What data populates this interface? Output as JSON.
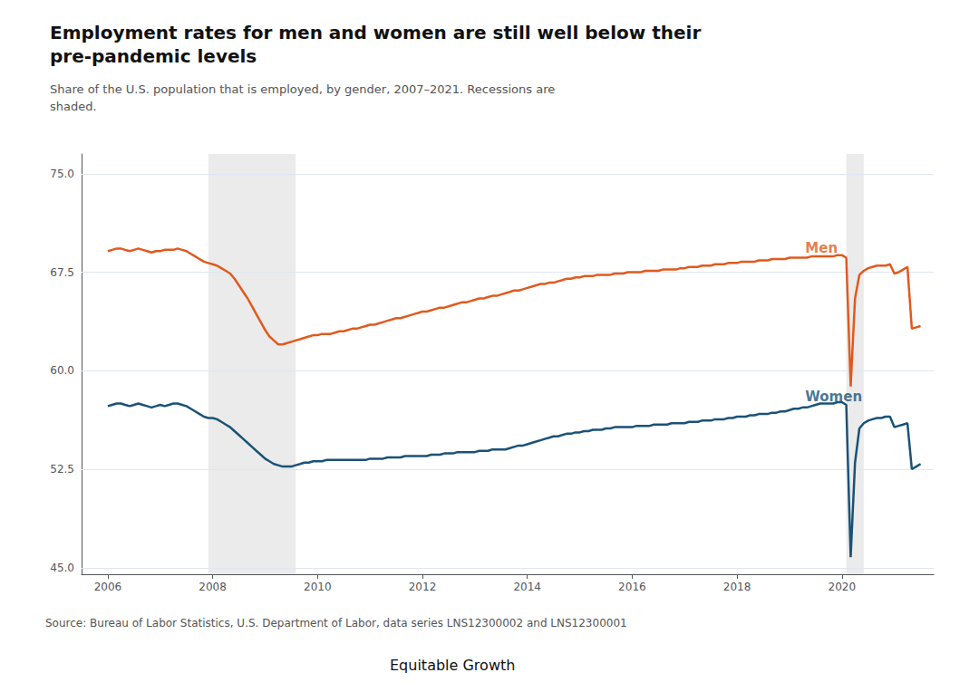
{
  "chart_data": {
    "type": "line",
    "title": "Employment rates for men and women are still well below their\npre-pandemic levels",
    "subtitle": "Share of the U.S. population that is employed, by gender, 2007–2021. Recessions are\nshaded.",
    "source": "Source: Bureau of Labor Statistics, U.S. Department of Labor, data series LNS12300002 and LNS12300001",
    "logo": "Equitable Growth",
    "xlim": [
      2005.5,
      2021.75
    ],
    "xticks": [
      2006,
      2008,
      2010,
      2012,
      2014,
      2016,
      2018,
      2020
    ],
    "ylim": [
      44.5,
      76.5
    ],
    "yticks": [
      {
        "value": 45,
        "label": "45.0"
      },
      52.5,
      {
        "value": 60,
        "label": "60.0"
      },
      67.5,
      {
        "value": 75,
        "label": "75.0"
      }
    ],
    "grid": true,
    "recessions": [
      [
        2007.917,
        2009.583
      ],
      [
        2020.083,
        2020.417
      ]
    ],
    "annotations": [
      {
        "text": "Men",
        "x": 2019.3,
        "y": 68.8,
        "color": "#e05a1e"
      },
      {
        "text": "Women",
        "x": 2019.3,
        "y": 57.5,
        "color": "#1a5276"
      }
    ],
    "x": [
      2006.0,
      2006.083,
      2006.167,
      2006.25,
      2006.333,
      2006.417,
      2006.5,
      2006.583,
      2006.667,
      2006.75,
      2006.833,
      2006.917,
      2007.0,
      2007.083,
      2007.167,
      2007.25,
      2007.333,
      2007.417,
      2007.5,
      2007.583,
      2007.667,
      2007.75,
      2007.833,
      2007.917,
      2008.0,
      2008.083,
      2008.167,
      2008.25,
      2008.333,
      2008.417,
      2008.5,
      2008.583,
      2008.667,
      2008.75,
      2008.833,
      2008.917,
      2009.0,
      2009.083,
      2009.167,
      2009.25,
      2009.333,
      2009.417,
      2009.5,
      2009.583,
      2009.667,
      2009.75,
      2009.833,
      2009.917,
      2010.0,
      2010.083,
      2010.167,
      2010.25,
      2010.333,
      2010.417,
      2010.5,
      2010.583,
      2010.667,
      2010.75,
      2010.833,
      2010.917,
      2011.0,
      2011.083,
      2011.167,
      2011.25,
      2011.333,
      2011.417,
      2011.5,
      2011.583,
      2011.667,
      2011.75,
      2011.833,
      2011.917,
      2012.0,
      2012.083,
      2012.167,
      2012.25,
      2012.333,
      2012.417,
      2012.5,
      2012.583,
      2012.667,
      2012.75,
      2012.833,
      2012.917,
      2013.0,
      2013.083,
      2013.167,
      2013.25,
      2013.333,
      2013.417,
      2013.5,
      2013.583,
      2013.667,
      2013.75,
      2013.833,
      2013.917,
      2014.0,
      2014.083,
      2014.167,
      2014.25,
      2014.333,
      2014.417,
      2014.5,
      2014.583,
      2014.667,
      2014.75,
      2014.833,
      2014.917,
      2015.0,
      2015.083,
      2015.167,
      2015.25,
      2015.333,
      2015.417,
      2015.5,
      2015.583,
      2015.667,
      2015.75,
      2015.833,
      2015.917,
      2016.0,
      2016.083,
      2016.167,
      2016.25,
      2016.333,
      2016.417,
      2016.5,
      2016.583,
      2016.667,
      2016.75,
      2016.833,
      2016.917,
      2017.0,
      2017.083,
      2017.167,
      2017.25,
      2017.333,
      2017.417,
      2017.5,
      2017.583,
      2017.667,
      2017.75,
      2017.833,
      2017.917,
      2018.0,
      2018.083,
      2018.167,
      2018.25,
      2018.333,
      2018.417,
      2018.5,
      2018.583,
      2018.667,
      2018.75,
      2018.833,
      2018.917,
      2019.0,
      2019.083,
      2019.167,
      2019.25,
      2019.333,
      2019.417,
      2019.5,
      2019.583,
      2019.667,
      2019.75,
      2019.833,
      2019.917,
      2020.0,
      2020.083,
      2020.167,
      2020.25,
      2020.333,
      2020.417,
      2020.5,
      2020.583,
      2020.667,
      2020.75,
      2020.833,
      2020.917,
      2021.0,
      2021.083,
      2021.167,
      2021.25,
      2021.333,
      2021.417,
      2021.5
    ],
    "series": [
      {
        "name": "Men",
        "color": "#e05a1e",
        "values": [
          69.1,
          69.2,
          69.3,
          69.3,
          69.2,
          69.1,
          69.2,
          69.3,
          69.2,
          69.1,
          69.0,
          69.1,
          69.1,
          69.2,
          69.2,
          69.2,
          69.3,
          69.2,
          69.1,
          68.9,
          68.7,
          68.5,
          68.3,
          68.2,
          68.1,
          68.0,
          67.8,
          67.6,
          67.4,
          67.0,
          66.5,
          66.0,
          65.5,
          64.9,
          64.3,
          63.7,
          63.1,
          62.6,
          62.3,
          62.0,
          62.0,
          62.1,
          62.2,
          62.3,
          62.4,
          62.5,
          62.6,
          62.7,
          62.7,
          62.8,
          62.8,
          62.8,
          62.9,
          63.0,
          63.0,
          63.1,
          63.2,
          63.2,
          63.3,
          63.4,
          63.5,
          63.5,
          63.6,
          63.7,
          63.8,
          63.9,
          64.0,
          64.0,
          64.1,
          64.2,
          64.3,
          64.4,
          64.5,
          64.5,
          64.6,
          64.7,
          64.8,
          64.8,
          64.9,
          65.0,
          65.1,
          65.2,
          65.2,
          65.3,
          65.4,
          65.5,
          65.5,
          65.6,
          65.7,
          65.7,
          65.8,
          65.9,
          66.0,
          66.1,
          66.1,
          66.2,
          66.3,
          66.4,
          66.5,
          66.6,
          66.6,
          66.7,
          66.7,
          66.8,
          66.9,
          67.0,
          67.0,
          67.1,
          67.1,
          67.2,
          67.2,
          67.2,
          67.3,
          67.3,
          67.3,
          67.3,
          67.4,
          67.4,
          67.4,
          67.5,
          67.5,
          67.5,
          67.5,
          67.6,
          67.6,
          67.6,
          67.6,
          67.7,
          67.7,
          67.7,
          67.7,
          67.8,
          67.8,
          67.9,
          67.9,
          67.9,
          68.0,
          68.0,
          68.0,
          68.1,
          68.1,
          68.1,
          68.2,
          68.2,
          68.2,
          68.3,
          68.3,
          68.3,
          68.3,
          68.4,
          68.4,
          68.4,
          68.5,
          68.5,
          68.5,
          68.5,
          68.6,
          68.6,
          68.6,
          68.6,
          68.6,
          68.7,
          68.7,
          68.7,
          68.7,
          68.7,
          68.7,
          68.8,
          68.8,
          68.6,
          58.8,
          65.5,
          67.3,
          67.6,
          67.8,
          67.9,
          68.0,
          68.0,
          68.0,
          68.1,
          67.4,
          67.5,
          67.7,
          67.9,
          63.2,
          63.3,
          63.4
        ]
      },
      {
        "name": "Women",
        "color": "#1a5276",
        "values": [
          57.3,
          57.4,
          57.5,
          57.5,
          57.4,
          57.3,
          57.4,
          57.5,
          57.4,
          57.3,
          57.2,
          57.3,
          57.4,
          57.3,
          57.4,
          57.5,
          57.5,
          57.4,
          57.3,
          57.1,
          56.9,
          56.7,
          56.5,
          56.4,
          56.4,
          56.3,
          56.1,
          55.9,
          55.7,
          55.4,
          55.1,
          54.8,
          54.5,
          54.2,
          53.9,
          53.6,
          53.3,
          53.1,
          52.9,
          52.8,
          52.7,
          52.7,
          52.7,
          52.8,
          52.9,
          53.0,
          53.0,
          53.1,
          53.1,
          53.1,
          53.2,
          53.2,
          53.2,
          53.2,
          53.2,
          53.2,
          53.2,
          53.2,
          53.2,
          53.2,
          53.3,
          53.3,
          53.3,
          53.3,
          53.4,
          53.4,
          53.4,
          53.4,
          53.5,
          53.5,
          53.5,
          53.5,
          53.5,
          53.5,
          53.6,
          53.6,
          53.6,
          53.7,
          53.7,
          53.7,
          53.8,
          53.8,
          53.8,
          53.8,
          53.8,
          53.9,
          53.9,
          53.9,
          54.0,
          54.0,
          54.0,
          54.0,
          54.1,
          54.2,
          54.3,
          54.3,
          54.4,
          54.5,
          54.6,
          54.7,
          54.8,
          54.9,
          55.0,
          55.0,
          55.1,
          55.2,
          55.2,
          55.3,
          55.3,
          55.4,
          55.4,
          55.5,
          55.5,
          55.5,
          55.6,
          55.6,
          55.7,
          55.7,
          55.7,
          55.7,
          55.7,
          55.8,
          55.8,
          55.8,
          55.8,
          55.9,
          55.9,
          55.9,
          55.9,
          56.0,
          56.0,
          56.0,
          56.0,
          56.1,
          56.1,
          56.1,
          56.2,
          56.2,
          56.2,
          56.3,
          56.3,
          56.3,
          56.4,
          56.4,
          56.5,
          56.5,
          56.5,
          56.6,
          56.6,
          56.7,
          56.7,
          56.7,
          56.8,
          56.8,
          56.9,
          56.9,
          57.0,
          57.1,
          57.1,
          57.2,
          57.2,
          57.3,
          57.4,
          57.5,
          57.5,
          57.5,
          57.5,
          57.6,
          57.6,
          57.4,
          45.8,
          53.0,
          55.6,
          56.0,
          56.2,
          56.3,
          56.4,
          56.4,
          56.5,
          56.5,
          55.7,
          55.8,
          55.9,
          56.0,
          52.5,
          52.7,
          52.9
        ]
      }
    ]
  }
}
